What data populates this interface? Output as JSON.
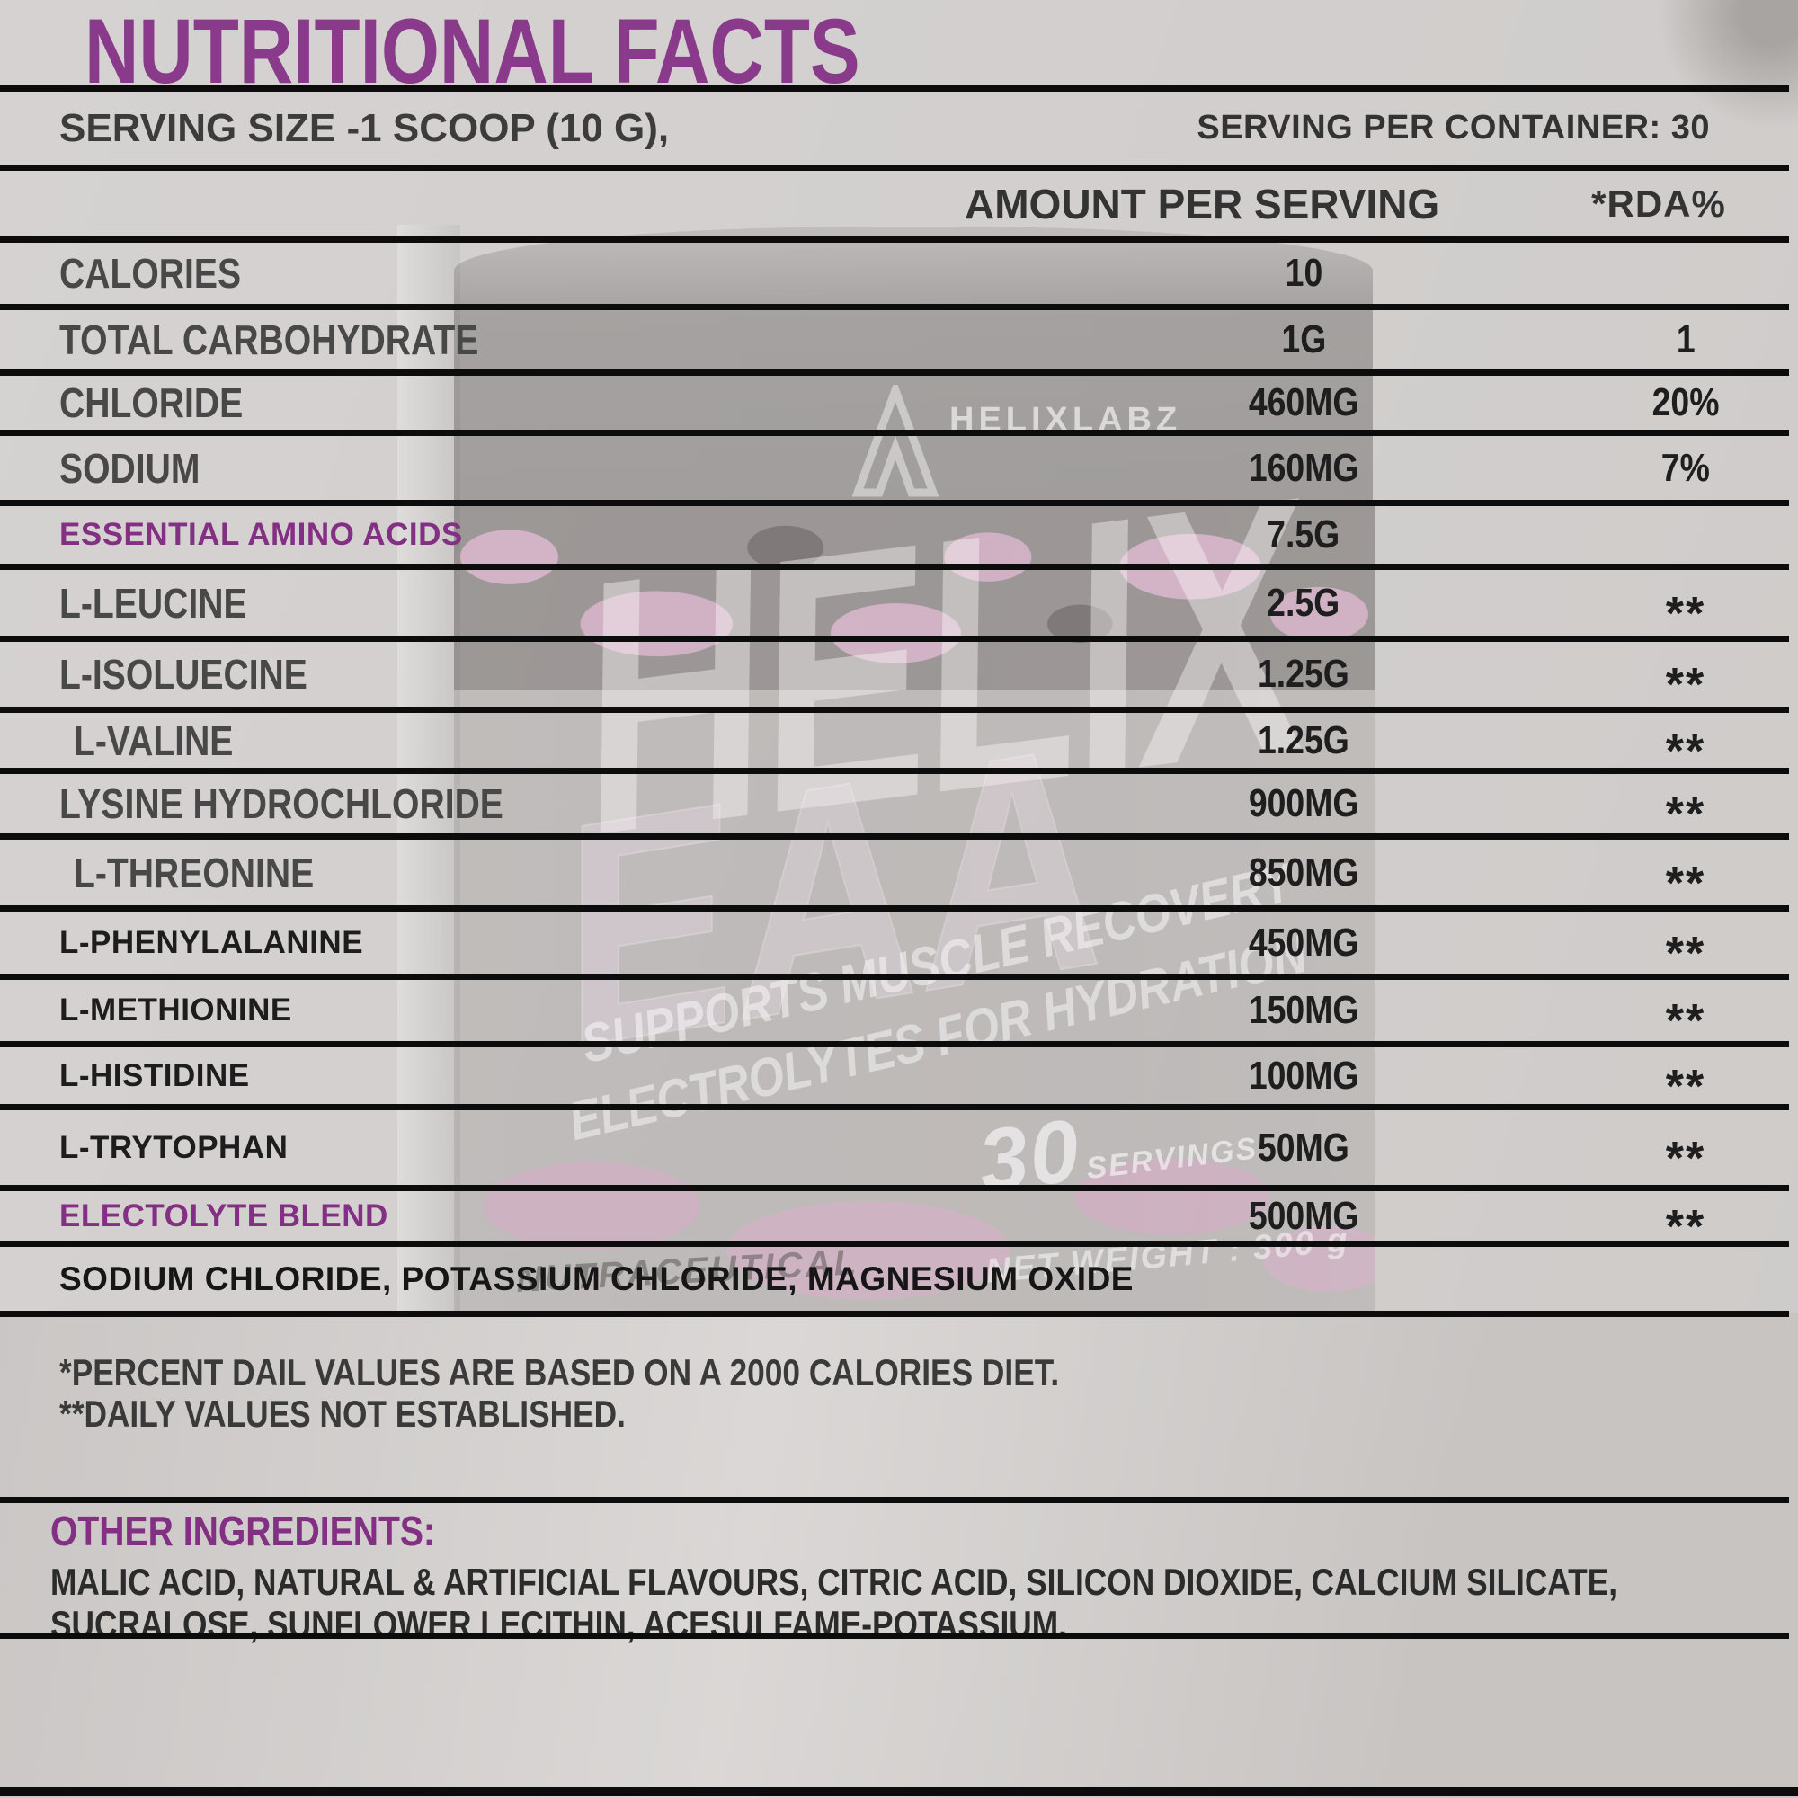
{
  "palette": {
    "background": "#d2cfce",
    "line": "#0d0c0c",
    "accent_purple": "#832f84",
    "title_purple": "#8a3a8b",
    "text_gray": "#484848",
    "text_dark": "#1d1d1d",
    "watermark_pink": "#e5aed2"
  },
  "title": "NUTRITIONAL FACTS",
  "serving": {
    "left": "SERVING SIZE -1 SCOOP (10 G),",
    "right": "SERVING PER CONTAINER: 30"
  },
  "header": {
    "amount": "AMOUNT PER SERVING",
    "rda": "*RDA%"
  },
  "rows": [
    {
      "label": "CALORIES",
      "amount": "10",
      "rda": ""
    },
    {
      "label": "TOTAL CARBOHYDRATE",
      "amount": "1G",
      "rda": "1"
    },
    {
      "label": "CHLORIDE",
      "amount": "460MG",
      "rda": "20%"
    },
    {
      "label": "SODIUM",
      "amount": "160MG",
      "rda": "7%"
    },
    {
      "label": "ESSENTIAL AMINO ACIDS",
      "amount": "7.5G",
      "rda": "",
      "purple": true,
      "wide": true
    },
    {
      "label": "L-LEUCINE",
      "amount": "2.5G",
      "rda": "**"
    },
    {
      "label": "L-ISOLUECINE",
      "amount": "1.25G",
      "rda": "**"
    },
    {
      "label": "L-VALINE",
      "amount": "1.25G",
      "rda": "**",
      "indent": true
    },
    {
      "label": "LYSINE HYDROCHLORIDE",
      "amount": "900MG",
      "rda": "**"
    },
    {
      "label": "L-THREONINE",
      "amount": "850MG",
      "rda": "**",
      "indent": true
    },
    {
      "label": "L-PHENYLALANINE",
      "amount": "450MG",
      "rda": "**",
      "dark": true,
      "wide": true
    },
    {
      "label": "L-METHIONINE",
      "amount": "150MG",
      "rda": "**",
      "dark": true,
      "wide": true
    },
    {
      "label": "L-HISTIDINE",
      "amount": "100MG",
      "rda": "**",
      "dark": true,
      "wide": true
    },
    {
      "label": "L-TRYTOPHAN",
      "amount": "50MG",
      "rda": "**",
      "dark": true,
      "wide": true
    },
    {
      "label": "ELECTOLYTE BLEND",
      "amount": "500MG",
      "rda": "**",
      "purple": true,
      "wide": true
    },
    {
      "label": "SODIUM CHLORIDE, POTASSIUM CHLORIDE, MAGNESIUM OXIDE",
      "amount": "",
      "rda": "",
      "dark": true,
      "wide": true,
      "full": true
    }
  ],
  "footnotes": [
    "*PERCENT DAIL VALUES ARE BASED ON A 2000 CALORIES DIET.",
    "**DAILY VALUES NOT ESTABLISHED."
  ],
  "other_ingredients": {
    "heading": "OTHER INGREDIENTS:",
    "lines": [
      "MALIC ACID, NATURAL & ARTIFICIAL FLAVOURS, CITRIC ACID, SILICON DIOXIDE, CALCIUM SILICATE,",
      "SUCRALOSE, SUNFLOWER LECITHIN, ACESULFAME-POTASSIUM."
    ]
  },
  "watermark": {
    "brand": "HELIXLABZ",
    "product": "HELIX",
    "product_sub": "EAA",
    "tagline1": "SUPPORTS MUSCLE RECOVERY",
    "tagline2": "ELECTROLYTES FOR HYDRATION",
    "servings_number": "30",
    "servings_word": "SERVINGS",
    "nutraceutical": "NUTRACEUTICAL",
    "net_weight": "NET WEIGHT : 300 g"
  }
}
